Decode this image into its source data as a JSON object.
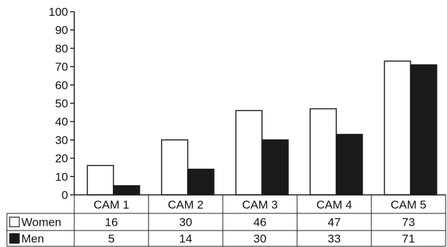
{
  "chart_data": {
    "type": "bar",
    "categories": [
      "CAM 1",
      "CAM 2",
      "CAM 3",
      "CAM 4",
      "CAM 5"
    ],
    "series": [
      {
        "name": "Women",
        "values": [
          16,
          30,
          46,
          47,
          73
        ],
        "fill": "#ffffff",
        "stroke": "#1a1a1a"
      },
      {
        "name": "Men",
        "values": [
          5,
          14,
          30,
          33,
          71
        ],
        "fill": "#1a1a1a",
        "stroke": "#1a1a1a"
      }
    ],
    "ylim": [
      0,
      100
    ],
    "yticks": [
      0,
      10,
      20,
      30,
      40,
      50,
      60,
      70,
      80,
      90,
      100
    ],
    "xlabel": "",
    "ylabel": "",
    "title": "",
    "grid": false,
    "legend": "data-table-rows"
  }
}
